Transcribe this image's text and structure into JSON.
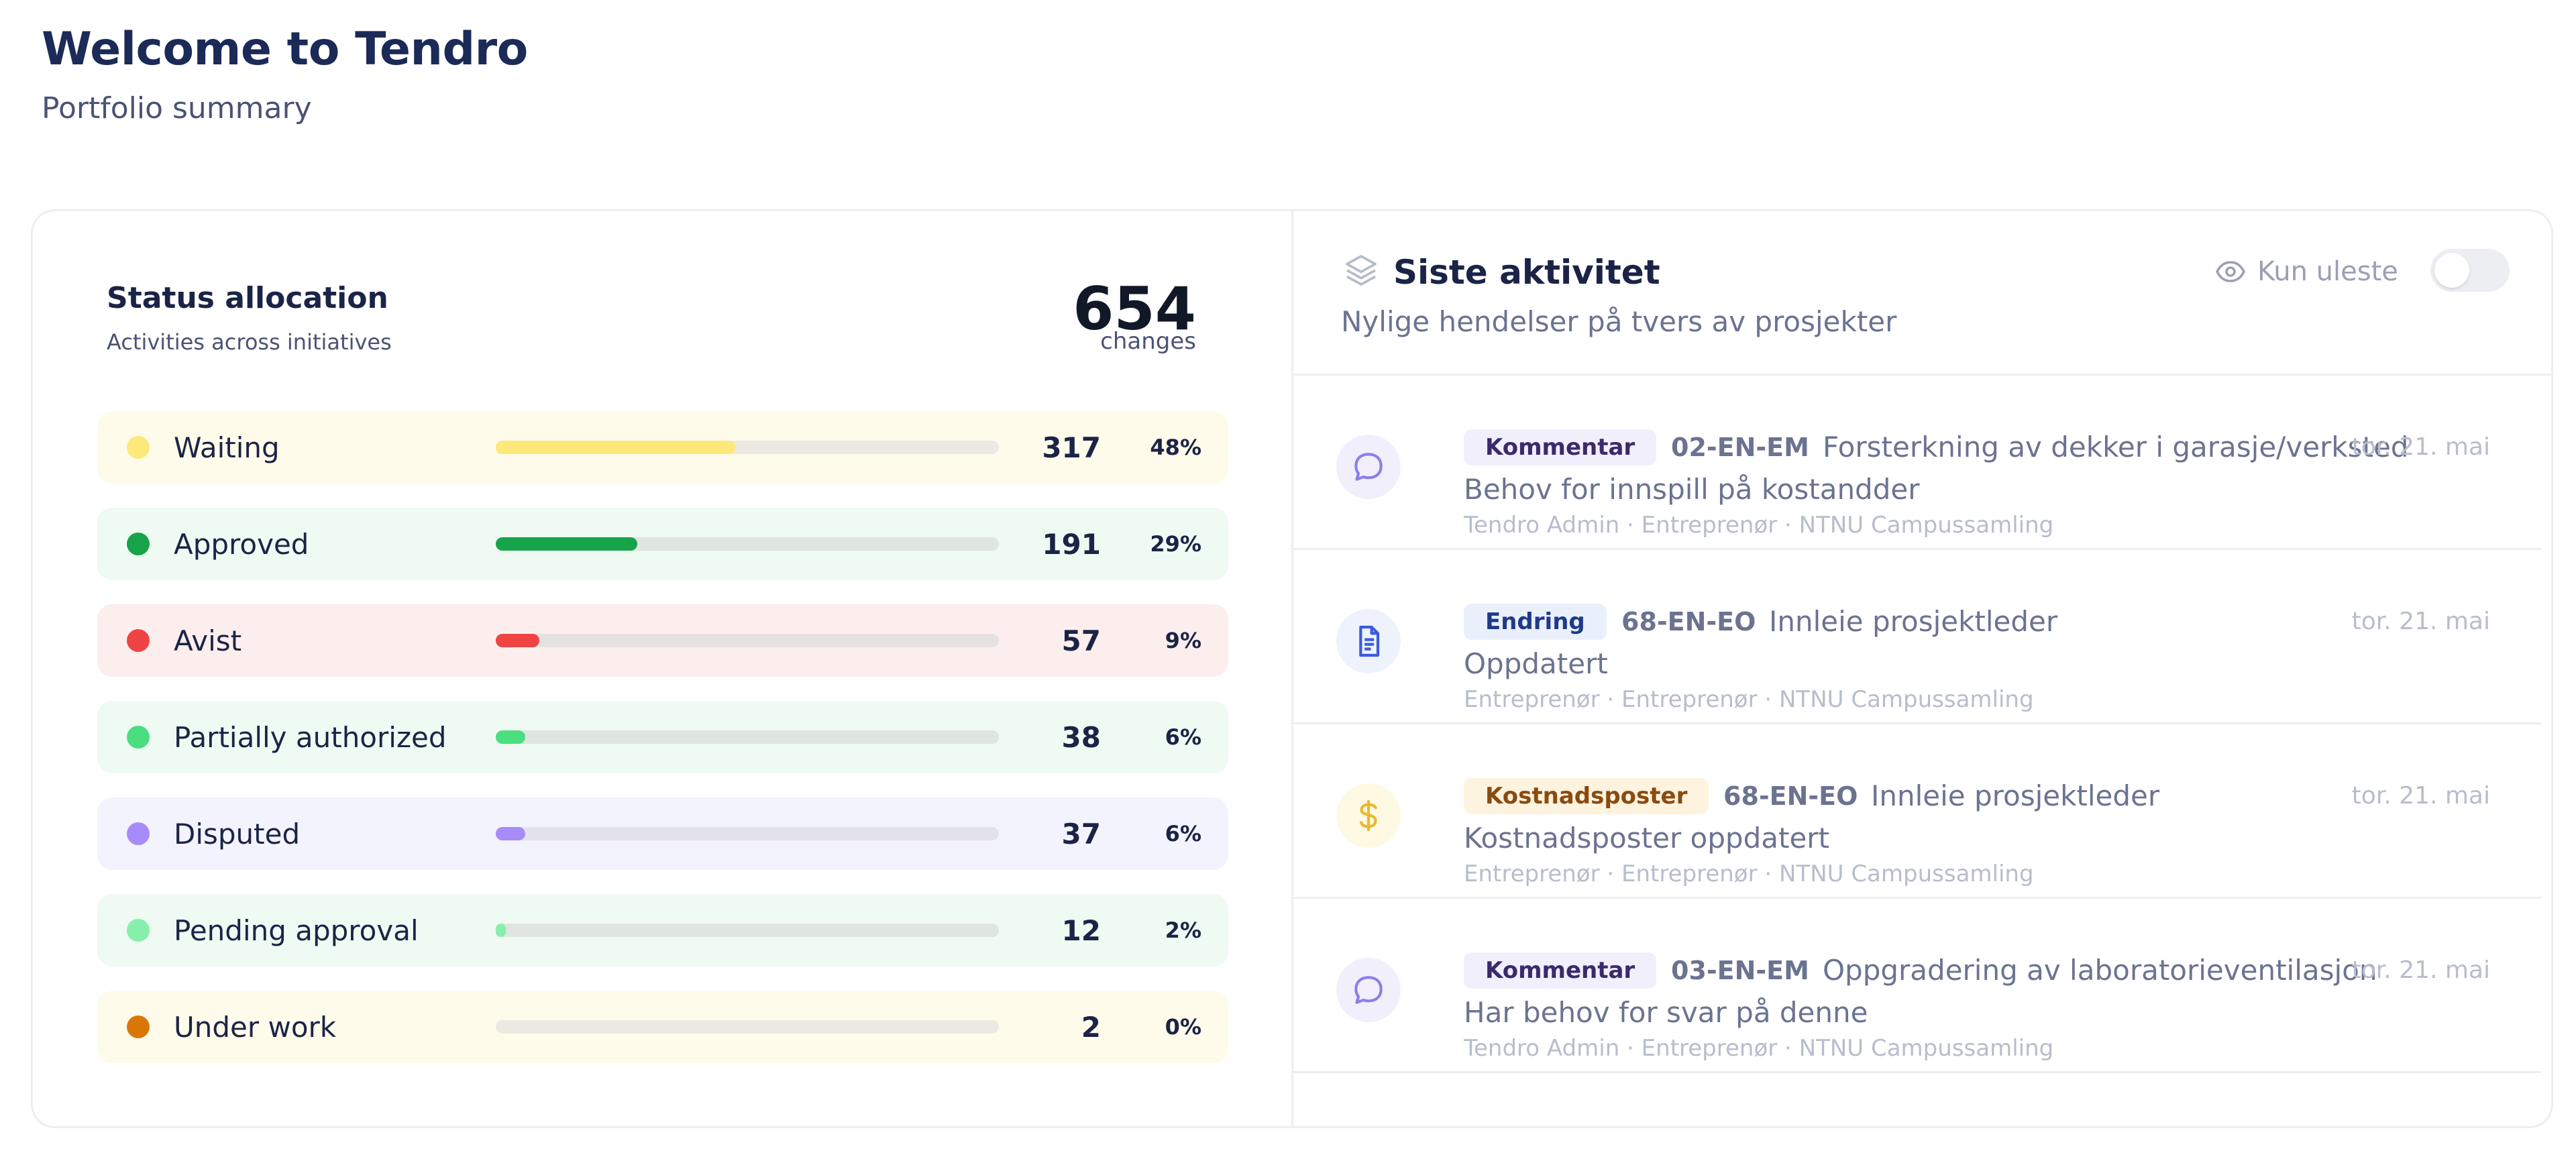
{
  "header": {
    "title": "Welcome to Tendro",
    "subtitle": "Portfolio summary"
  },
  "status_allocation": {
    "title": "Status allocation",
    "subtitle": "Activities across initiatives",
    "total": "654",
    "total_label": "changes",
    "rows": [
      {
        "label": "Waiting",
        "count": "317",
        "percent": "48%",
        "fraction": 0.48,
        "dot_color": "#fde87a",
        "bar_color": "#fde87a",
        "row_bg": "#fffbea",
        "track_color": "#ece9e2"
      },
      {
        "label": "Approved",
        "count": "191",
        "percent": "29%",
        "fraction": 0.29,
        "dot_color": "#16a34a",
        "bar_color": "#16a34a",
        "row_bg": "#eefaf2",
        "track_color": "#dfe5e1"
      },
      {
        "label": "Avist",
        "count": "57",
        "percent": "9%",
        "fraction": 0.09,
        "dot_color": "#ef4444",
        "bar_color": "#ef4444",
        "row_bg": "#fdeeee",
        "track_color": "#e6e1e1"
      },
      {
        "label": "Partially authorized",
        "count": "38",
        "percent": "6%",
        "fraction": 0.06,
        "dot_color": "#4ade80",
        "bar_color": "#4ade80",
        "row_bg": "#eefaf2",
        "track_color": "#dfe5e1"
      },
      {
        "label": "Disputed",
        "count": "37",
        "percent": "6%",
        "fraction": 0.06,
        "dot_color": "#a78bfa",
        "bar_color": "#a78bfa",
        "row_bg": "#f3f3fd",
        "track_color": "#e3e2ea"
      },
      {
        "label": "Pending approval",
        "count": "12",
        "percent": "2%",
        "fraction": 0.02,
        "dot_color": "#86efac",
        "bar_color": "#86efac",
        "row_bg": "#eefaf2",
        "track_color": "#dfe5e1"
      },
      {
        "label": "Under work",
        "count": "2",
        "percent": "0%",
        "fraction": 0.0,
        "dot_color": "#d97706",
        "bar_color": "#d97706",
        "row_bg": "#fffbea",
        "track_color": "#ece9e2"
      }
    ]
  },
  "activity": {
    "title": "Siste aktivitet",
    "subtitle": "Nylige hendelser på tvers av prosjekter",
    "unread_label": "Kun uleste",
    "unread_toggle_on": false,
    "items": [
      {
        "icon": "comment-icon",
        "icon_bg": "#f1effc",
        "icon_color": "#8b7fe8",
        "badge": "Kommentar",
        "badge_bg": "#f1effc",
        "badge_color": "#3b2a6b",
        "code": "02-EN-EM",
        "title": "Forsterkning av dekker i garasje/verksted",
        "date": "tor. 21. mai",
        "description": "Behov for innspill på kostandder",
        "meta": "Tendro Admin  ·  Entreprenør  ·  NTNU Campussamling"
      },
      {
        "icon": "document-icon",
        "icon_bg": "#eef2fd",
        "icon_color": "#3b5bdb",
        "badge": "Endring",
        "badge_bg": "#eaf0fb",
        "badge_color": "#1e3a8a",
        "code": "68-EN-EO",
        "title": "Innleie prosjektleder",
        "date": "tor. 21. mai",
        "description": "Oppdatert",
        "meta": "Entreprenør  ·  Entreprenør  ·  NTNU Campussamling"
      },
      {
        "icon": "dollar-icon",
        "icon_bg": "#fef9e2",
        "icon_color": "#e8b930",
        "badge": "Kostnadsposter",
        "badge_bg": "#fef3de",
        "badge_color": "#8a4b0f",
        "code": "68-EN-EO",
        "title": "Innleie prosjektleder",
        "date": "tor. 21. mai",
        "description": "Kostnadsposter oppdatert",
        "meta": "Entreprenør  ·  Entreprenør  ·  NTNU Campussamling"
      },
      {
        "icon": "comment-icon",
        "icon_bg": "#f1effc",
        "icon_color": "#8b7fe8",
        "badge": "Kommentar",
        "badge_bg": "#f1effc",
        "badge_color": "#3b2a6b",
        "code": "03-EN-EM",
        "title": "Oppgradering av laboratorieventilasjon",
        "date": "tor. 21. mai",
        "description": "Har behov for svar på denne",
        "meta": "Tendro Admin  ·  Entreprenør  ·  NTNU Campussamling"
      }
    ]
  }
}
